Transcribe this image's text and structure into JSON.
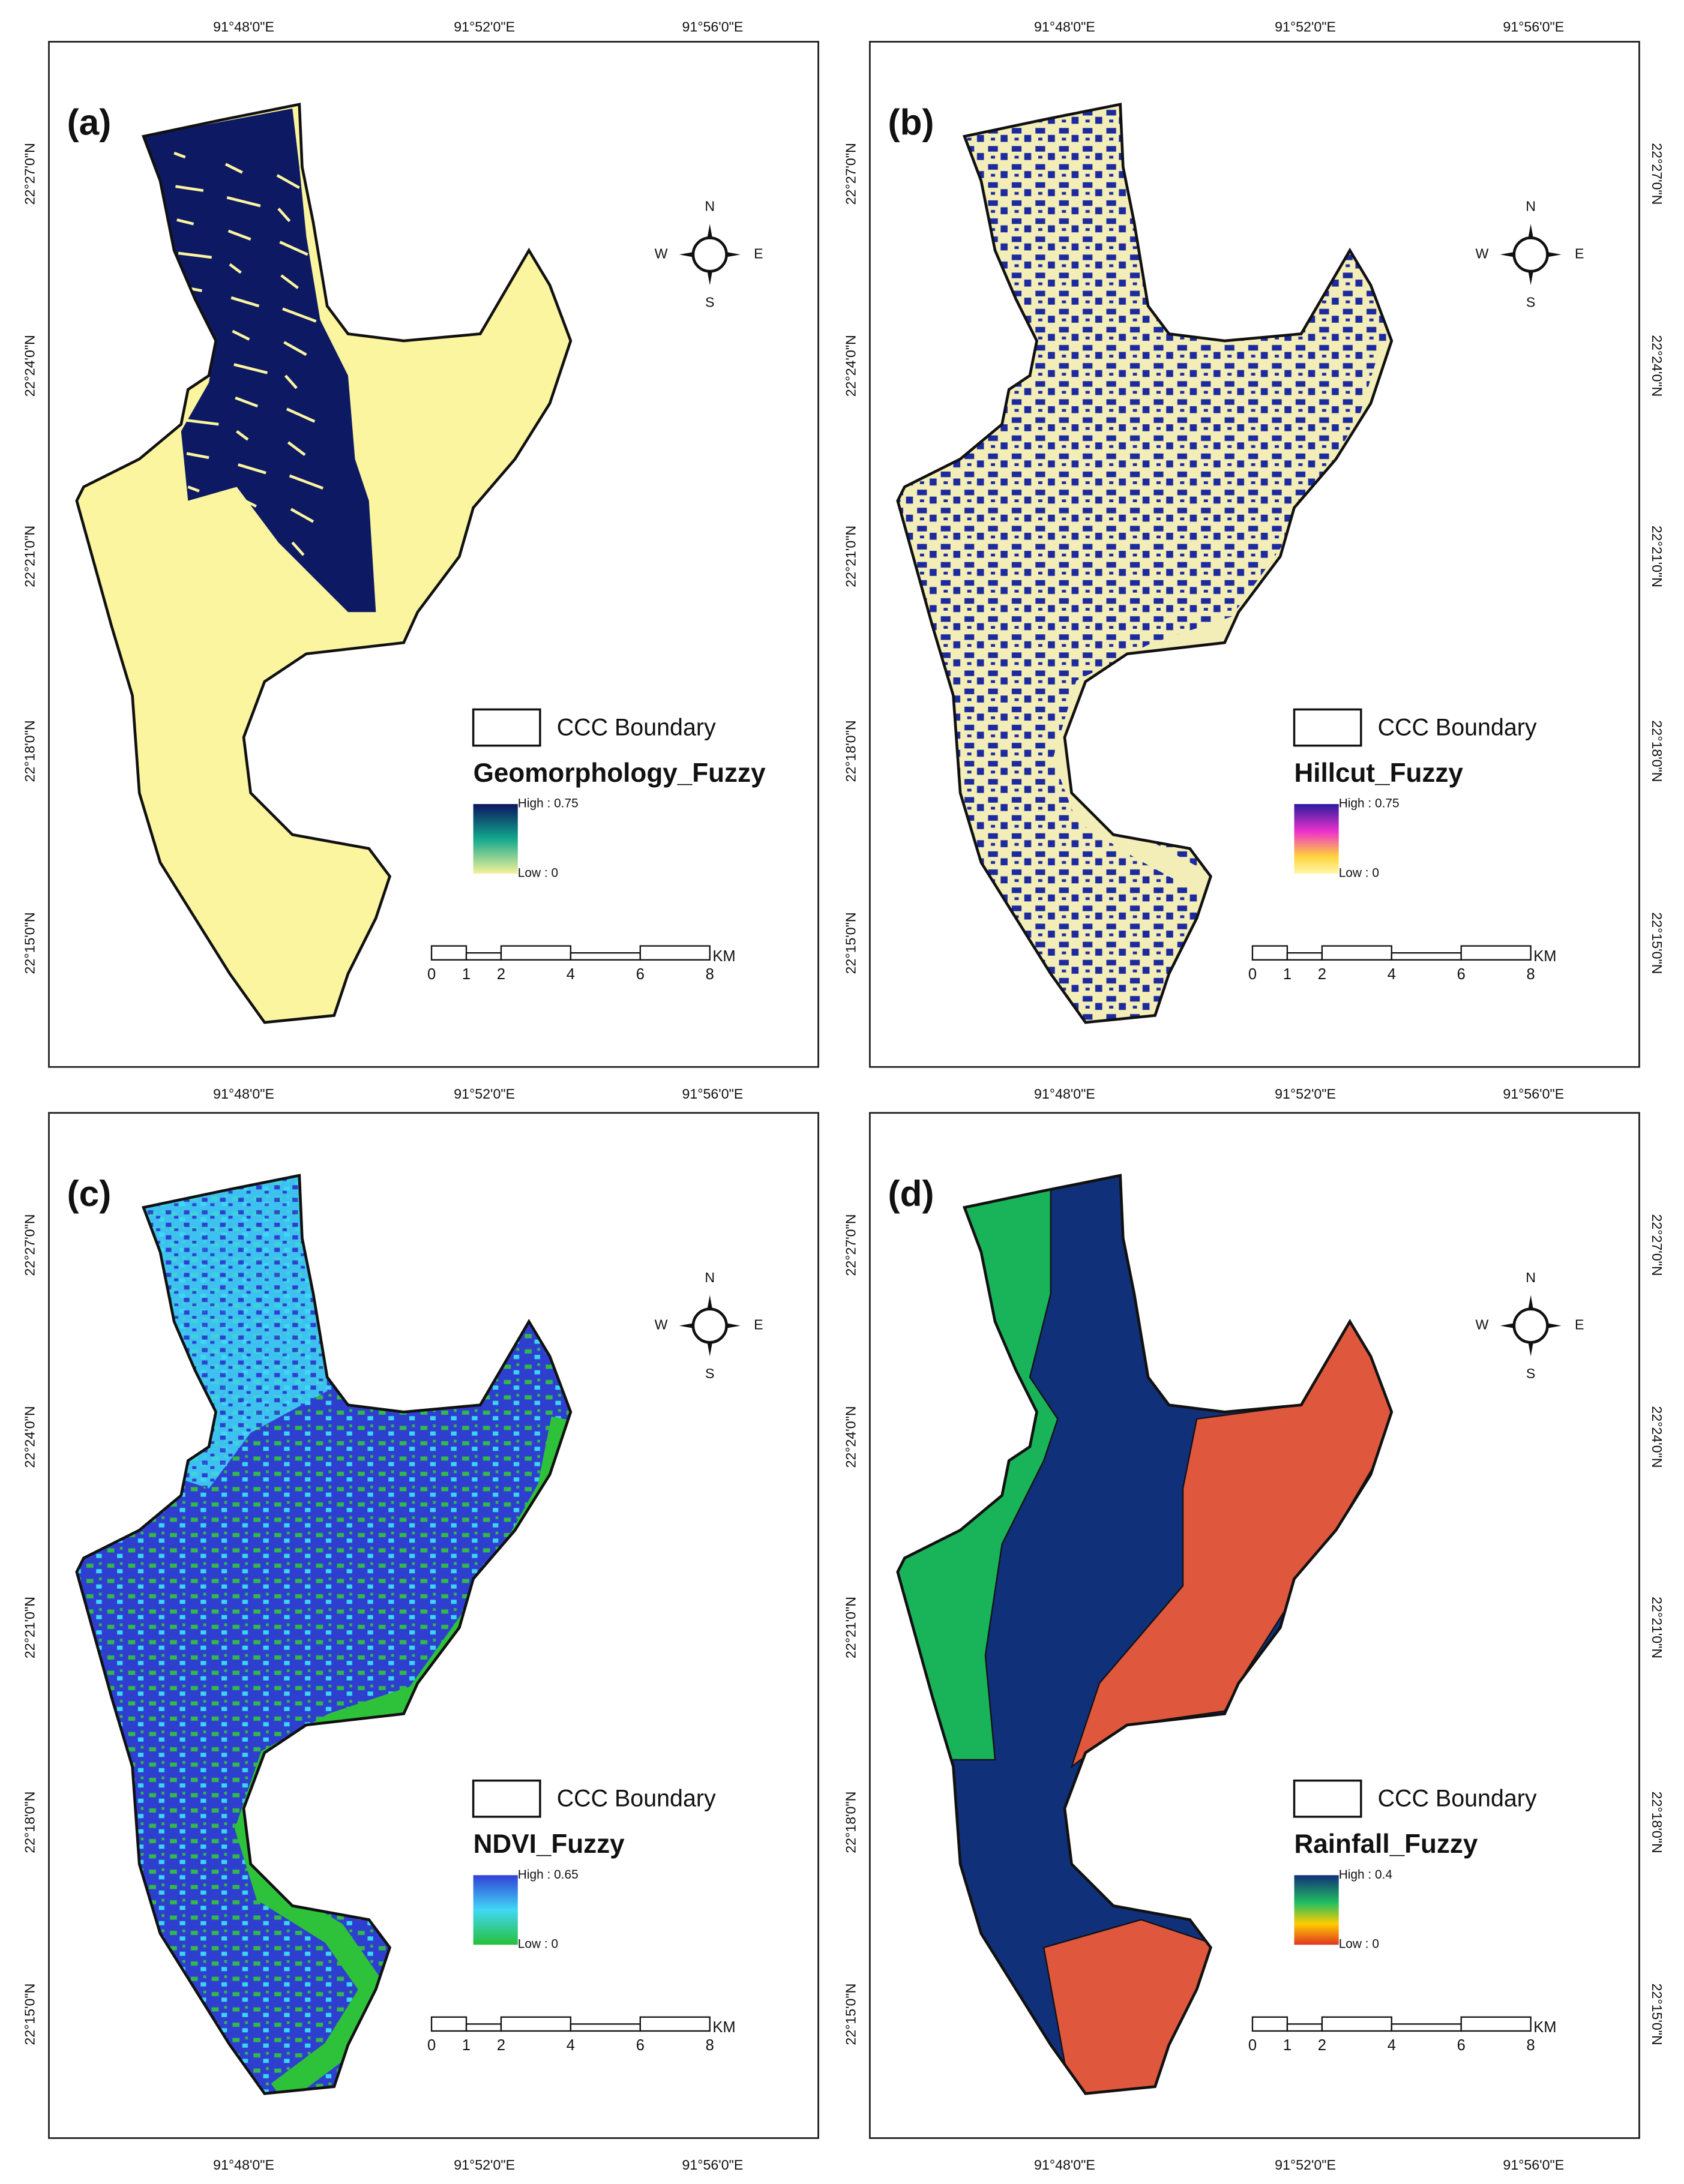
{
  "lon_labels": [
    "91°48'0\"E",
    "91°52'0\"E",
    "91°56'0\"E"
  ],
  "lat_labels": [
    "22°27'0\"N",
    "22°24'0\"N",
    "22°21'0\"N",
    "22°18'0\"N",
    "22°15'0\"N"
  ],
  "compass": {
    "n": "N",
    "s": "S",
    "e": "E",
    "w": "W"
  },
  "boundary_label": "CCC Boundary",
  "scale": {
    "ticks": [
      0,
      1,
      2,
      4,
      6,
      8
    ],
    "unit": "KM"
  },
  "panels": [
    {
      "label": "(a)",
      "legend_title": "Geomorphology_Fuzzy",
      "high": "High : 0.75",
      "low": "Low : 0"
    },
    {
      "label": "(b)",
      "legend_title": "Hillcut_Fuzzy",
      "high": "High : 0.75",
      "low": "Low : 0"
    },
    {
      "label": "(c)",
      "legend_title": "NDVI_Fuzzy",
      "high": "High : 0.65",
      "low": "Low : 0"
    },
    {
      "label": "(d)",
      "legend_title": "Rainfall_Fuzzy",
      "high": "High : 0.4",
      "low": "Low : 0"
    }
  ]
}
